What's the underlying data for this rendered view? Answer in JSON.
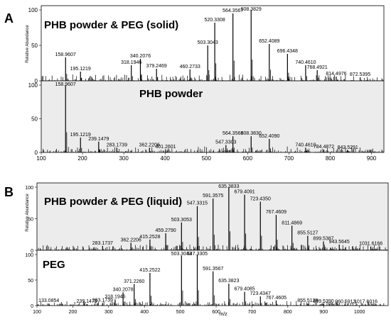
{
  "panel_labels": [
    "A",
    "B"
  ],
  "axes": {
    "ylabel": "Relative Abundance",
    "xlabel_B": "m/z"
  },
  "chart_data": [
    {
      "type": "bar",
      "panel": "A",
      "title": "PHB powder & PEG (solid)",
      "ylabel": "Relative Abundance",
      "xlim": [
        100,
        930
      ],
      "ylim": [
        0,
        100
      ],
      "xticks": [
        100,
        200,
        300,
        400,
        500,
        600,
        700,
        800,
        900
      ],
      "yticks": [
        0,
        50,
        100
      ],
      "peaks": [
        {
          "x": 158.9607,
          "y": 33,
          "label": "158.9607"
        },
        {
          "x": 195.1219,
          "y": 13,
          "label": "195.1219"
        },
        {
          "x": 318.1946,
          "y": 22,
          "label": "318.1946"
        },
        {
          "x": 340.2076,
          "y": 31,
          "label": "340.2076"
        },
        {
          "x": 379.2469,
          "y": 17,
          "label": "379.2469"
        },
        {
          "x": 460.2733,
          "y": 16,
          "label": "460.2733"
        },
        {
          "x": 503.3043,
          "y": 50,
          "label": "503.3043"
        },
        {
          "x": 520.3308,
          "y": 82,
          "label": "520.3308"
        },
        {
          "x": 564.3567,
          "y": 95,
          "label": "564.3567"
        },
        {
          "x": 608.3829,
          "y": 100,
          "label": "608.3829"
        },
        {
          "x": 652.4089,
          "y": 52,
          "label": "652.4089"
        },
        {
          "x": 696.4348,
          "y": 38,
          "label": "696.4348"
        },
        {
          "x": 740.461,
          "y": 22,
          "label": "740.4610"
        },
        {
          "x": 768.4921,
          "y": 15,
          "label": "768.4921"
        },
        {
          "x": 814.4976,
          "y": 6,
          "label": "814.4976"
        },
        {
          "x": 872.5395,
          "y": 5,
          "label": "872.5395"
        }
      ]
    },
    {
      "type": "bar",
      "panel": "A",
      "title": "PHB powder",
      "ylabel": "Relative Abundance",
      "xlabel": "",
      "xlim": [
        100,
        930
      ],
      "ylim": [
        0,
        100
      ],
      "xticks": [
        100,
        200,
        300,
        400,
        500,
        600,
        700,
        800,
        900
      ],
      "yticks": [
        0,
        50,
        100
      ],
      "peaks": [
        {
          "x": 158.9607,
          "y": 100,
          "label": "158.9607"
        },
        {
          "x": 195.1219,
          "y": 22,
          "label": "195.1219"
        },
        {
          "x": 239.1479,
          "y": 16,
          "label": "239.1479"
        },
        {
          "x": 283.1739,
          "y": 7,
          "label": "283.1739"
        },
        {
          "x": 362.2206,
          "y": 7,
          "label": "362.2206"
        },
        {
          "x": 401.2601,
          "y": 4,
          "label": "401.2601"
        },
        {
          "x": 547.3303,
          "y": 11,
          "label": "547.3303"
        },
        {
          "x": 564.3568,
          "y": 24,
          "label": "564.3568"
        },
        {
          "x": 608.383,
          "y": 24,
          "label": "608.3830"
        },
        {
          "x": 652.409,
          "y": 20,
          "label": "652.4090"
        },
        {
          "x": 740.461,
          "y": 7,
          "label": "740.4610"
        },
        {
          "x": 784.4872,
          "y": 4,
          "label": "784.4872"
        },
        {
          "x": 842.5291,
          "y": 3,
          "label": "842.5291"
        }
      ]
    },
    {
      "type": "bar",
      "panel": "B",
      "title": "PHB powder & PEG (liquid)",
      "ylabel": "Relative Abundance",
      "xlim": [
        100,
        1080
      ],
      "ylim": [
        0,
        100
      ],
      "xticks": [
        100,
        200,
        300,
        400,
        500,
        600,
        700,
        800,
        900,
        1000
      ],
      "yticks": [
        0,
        50,
        100
      ],
      "peaks": [
        {
          "x": 283.1737,
          "y": 7,
          "label": "283.1737"
        },
        {
          "x": 362.2206,
          "y": 12,
          "label": "362.2206"
        },
        {
          "x": 415.2528,
          "y": 17,
          "label": "415.2528"
        },
        {
          "x": 459.279,
          "y": 27,
          "label": "459.2790"
        },
        {
          "x": 503.3053,
          "y": 44,
          "label": "503.3053"
        },
        {
          "x": 547.3315,
          "y": 70,
          "label": "547.3315"
        },
        {
          "x": 591.3575,
          "y": 82,
          "label": "591.3575"
        },
        {
          "x": 635.3833,
          "y": 100,
          "label": "635.3833"
        },
        {
          "x": 679.4091,
          "y": 88,
          "label": "679.4091"
        },
        {
          "x": 723.435,
          "y": 77,
          "label": "723.4350"
        },
        {
          "x": 767.4609,
          "y": 56,
          "label": "767.4609"
        },
        {
          "x": 811.4869,
          "y": 39,
          "label": "811.4869"
        },
        {
          "x": 855.5127,
          "y": 23,
          "label": "855.5127"
        },
        {
          "x": 899.5387,
          "y": 14,
          "label": "899.5387"
        },
        {
          "x": 943.5645,
          "y": 9,
          "label": "943.5645"
        },
        {
          "x": 1031.6166,
          "y": 6,
          "label": "1031.6166"
        }
      ]
    },
    {
      "type": "bar",
      "panel": "B",
      "title": "PEG",
      "ylabel": "Relative Abundance",
      "xlabel": "m/z",
      "xlim": [
        100,
        1080
      ],
      "ylim": [
        0,
        100
      ],
      "xticks": [
        100,
        200,
        300,
        400,
        500,
        600,
        700,
        800,
        900,
        1000
      ],
      "yticks": [
        0,
        50,
        100
      ],
      "peaks": [
        {
          "x": 133.0854,
          "y": 4,
          "label": "133.0854"
        },
        {
          "x": 239.1479,
          "y": 3,
          "label": "239.1479"
        },
        {
          "x": 283.1739,
          "y": 5,
          "label": "283.1739"
        },
        {
          "x": 318.1946,
          "y": 12,
          "label": "318.1946"
        },
        {
          "x": 340.2078,
          "y": 26,
          "label": "340.2078"
        },
        {
          "x": 371.226,
          "y": 42,
          "label": "371.2260"
        },
        {
          "x": 415.2522,
          "y": 64,
          "label": "415.2522"
        },
        {
          "x": 503.3043,
          "y": 98,
          "label": "503.3043"
        },
        {
          "x": 547.3305,
          "y": 100,
          "label": "547.3305"
        },
        {
          "x": 591.3567,
          "y": 67,
          "label": "591.3567"
        },
        {
          "x": 635.3823,
          "y": 43,
          "label": "635.3823"
        },
        {
          "x": 679.4085,
          "y": 27,
          "label": "679.4085"
        },
        {
          "x": 723.4347,
          "y": 18,
          "label": "723.4347"
        },
        {
          "x": 767.4605,
          "y": 10,
          "label": "767.4605"
        },
        {
          "x": 855.5128,
          "y": 4,
          "label": "855.5128"
        },
        {
          "x": 899.539,
          "y": 3,
          "label": "899.5390"
        },
        {
          "x": 960.5913,
          "y": 2,
          "label": "960.5913"
        },
        {
          "x": 1017.6016,
          "y": 2,
          "label": "1017.6016"
        }
      ]
    }
  ]
}
